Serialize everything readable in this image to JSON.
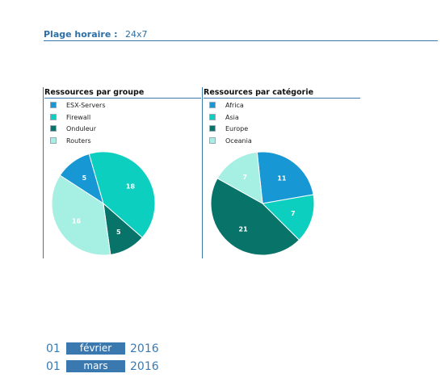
{
  "schedule": {
    "label": "Plage horaire :",
    "value": "24x7"
  },
  "chart_data": [
    {
      "type": "pie",
      "title": "Ressources par groupe",
      "categories": [
        "ESX-Servers",
        "Firewall",
        "Onduleur",
        "Routers"
      ],
      "values": [
        5,
        18,
        5,
        16
      ],
      "colors": [
        "#1797d4",
        "#0ccfc0",
        "#087368",
        "#a6efe3"
      ],
      "legend_position": "top-left"
    },
    {
      "type": "pie",
      "title": "Ressources par catégorie",
      "categories": [
        "Africa",
        "Asia",
        "Europe",
        "Oceania"
      ],
      "values": [
        11,
        7,
        21,
        7
      ],
      "colors": [
        "#1797d4",
        "#0ccfc0",
        "#087368",
        "#a6efe3"
      ],
      "legend_position": "top-left"
    }
  ],
  "dates": [
    {
      "day": "01",
      "month": "février",
      "year": "2016"
    },
    {
      "day": "01",
      "month": "mars",
      "year": "2016"
    }
  ]
}
